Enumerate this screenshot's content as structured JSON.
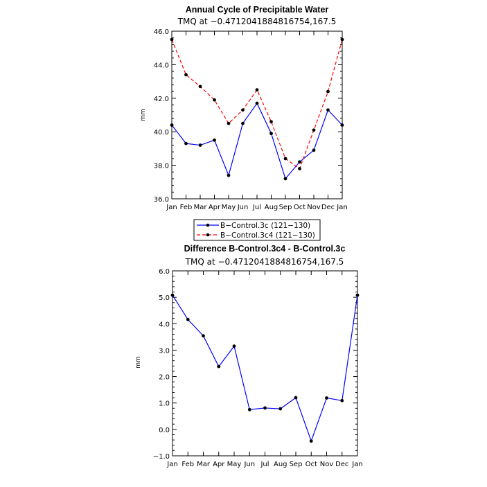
{
  "chart_data": [
    {
      "type": "line",
      "title": "Annual Cycle of Precipitable Water",
      "subtitle": "TMQ at −0.4712041884816754,167.5",
      "ylabel": "mm",
      "ylim": [
        36.0,
        46.0
      ],
      "yticks": [
        "36.0",
        "38.0",
        "40.0",
        "42.0",
        "44.0",
        "46.0"
      ],
      "categories": [
        "Jan",
        "Feb",
        "Mar",
        "Apr",
        "May",
        "Jun",
        "Jul",
        "Aug",
        "Sep",
        "Oct",
        "Nov",
        "Dec",
        "Jan"
      ],
      "series": [
        {
          "name": "B−Control.3c (121−130)",
          "color": "#0000ff",
          "dash": "solid",
          "values": [
            40.4,
            39.3,
            39.2,
            39.5,
            37.4,
            40.5,
            41.7,
            39.9,
            37.2,
            38.2,
            38.9,
            41.3,
            40.4
          ]
        },
        {
          "name": "B−Control.3c4 (121−130)",
          "color": "#ff0000",
          "dash": "dashed",
          "values": [
            45.5,
            43.4,
            42.7,
            41.9,
            40.5,
            41.3,
            42.5,
            40.6,
            38.4,
            37.8,
            40.1,
            42.4,
            45.5
          ]
        }
      ],
      "legend_position": "below"
    },
    {
      "type": "line",
      "title": "Difference B-Control.3c4 - B-Control.3c",
      "subtitle": "TMQ at −0.4712041884816754,167.5",
      "ylabel": "mm",
      "ylim": [
        -1.0,
        6.0
      ],
      "yticks": [
        "−1.0",
        "0.0",
        "1.0",
        "2.0",
        "3.0",
        "4.0",
        "5.0",
        "6.0"
      ],
      "categories": [
        "Jan",
        "Feb",
        "Mar",
        "Apr",
        "May",
        "Jun",
        "Jul",
        "Aug",
        "Sep",
        "Oct",
        "Nov",
        "Dec",
        "Jan"
      ],
      "series": [
        {
          "color": "#0000ff",
          "dash": "solid",
          "values": [
            5.08,
            4.16,
            3.54,
            2.38,
            3.15,
            0.75,
            0.81,
            0.78,
            1.2,
            -0.44,
            1.19,
            1.09,
            5.08
          ]
        }
      ]
    }
  ]
}
